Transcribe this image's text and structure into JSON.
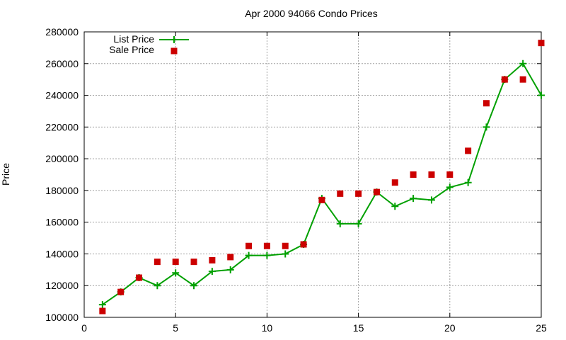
{
  "chart_data": {
    "type": "line",
    "title": "Apr 2000 94066 Condo Prices",
    "xlabel": "",
    "ylabel": "Price",
    "xlim": [
      0,
      25
    ],
    "ylim": [
      100000,
      280000
    ],
    "x_ticks": [
      0,
      5,
      10,
      15,
      20,
      25
    ],
    "y_ticks": [
      100000,
      120000,
      140000,
      160000,
      180000,
      200000,
      220000,
      240000,
      260000,
      280000
    ],
    "grid": true,
    "legend_position": "top-left",
    "x": [
      1,
      2,
      3,
      4,
      5,
      6,
      7,
      8,
      9,
      10,
      11,
      12,
      13,
      14,
      15,
      16,
      17,
      18,
      19,
      20,
      21,
      22,
      23,
      24,
      25
    ],
    "series": [
      {
        "name": "List Price",
        "style": "linespoints",
        "color": "#00a000",
        "values": [
          108000,
          116000,
          125000,
          120000,
          128000,
          120000,
          129000,
          130000,
          139000,
          139000,
          140000,
          146000,
          175000,
          159000,
          159000,
          179000,
          170000,
          175000,
          174000,
          182000,
          185000,
          220000,
          250000,
          260000,
          240000
        ]
      },
      {
        "name": "Sale Price",
        "style": "points",
        "color": "#cc0000",
        "values": [
          104000,
          116000,
          125000,
          135000,
          135000,
          135000,
          136000,
          138000,
          145000,
          145000,
          145000,
          146000,
          174000,
          178000,
          178000,
          179000,
          185000,
          190000,
          190000,
          190000,
          205000,
          235000,
          250000,
          250000,
          273000
        ]
      }
    ]
  }
}
